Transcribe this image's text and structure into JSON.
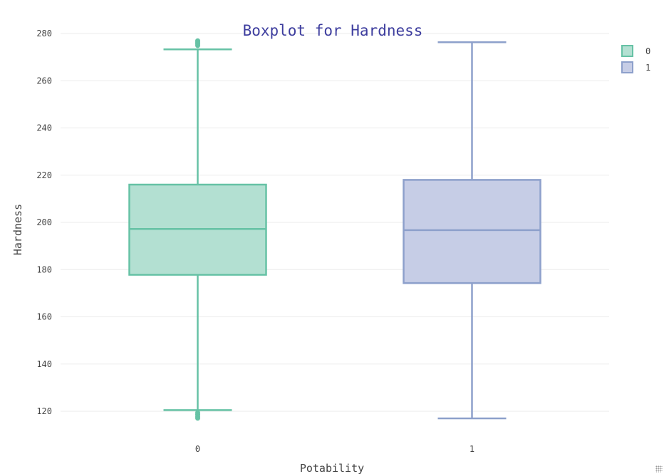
{
  "colors": {
    "title": "#3d3d9e",
    "gridline": "#ebebeb",
    "text": "#444444"
  },
  "chart_data": {
    "type": "box",
    "title": "Boxplot for Hardness",
    "xlabel": "Potability",
    "ylabel": "Hardness",
    "categories": [
      "0",
      "1"
    ],
    "ylim": [
      110,
      282
    ],
    "yticks": [
      120,
      140,
      160,
      180,
      200,
      220,
      240,
      260,
      280
    ],
    "grid": true,
    "legend_position": "top-right",
    "series": [
      {
        "name": "0",
        "category": "0",
        "color": "#66c2a5",
        "fill": "#b3e0d2",
        "whisker_low": 120.5,
        "q1": 177.8,
        "median": 197.2,
        "q3": 216.0,
        "whisker_high": 273.3,
        "outliers": [
          117.1,
          117.8,
          118.6,
          119.4,
          274.9,
          275.6,
          276.3,
          276.9
        ]
      },
      {
        "name": "1",
        "category": "1",
        "color": "#8da0cb",
        "fill": "#c6cde6",
        "whisker_low": 117.0,
        "q1": 174.3,
        "median": 196.7,
        "q3": 218.0,
        "whisker_high": 276.3,
        "outliers": []
      }
    ]
  }
}
